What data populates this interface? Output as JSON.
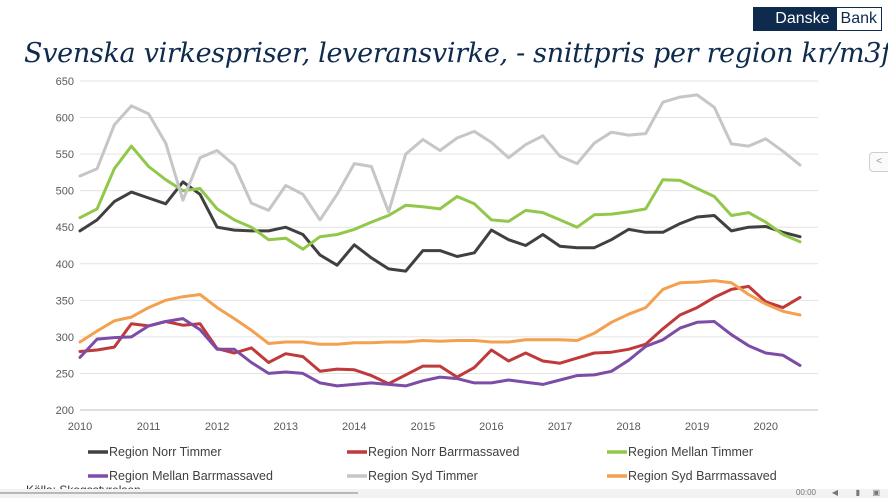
{
  "logo": {
    "part1": "Danske",
    "part2": "Bank"
  },
  "title": "Svenska virkespriser, leveransvirke, - snittpris per region kr/m3fub",
  "source": "Källa: Skogsstyrelsen",
  "player": {
    "time": "00:00"
  },
  "icons": {
    "share": "share-icon",
    "volume": "volume-icon",
    "fullscreen": "fullscreen-icon"
  },
  "chart_data": {
    "type": "line",
    "title": "",
    "xlabel": "",
    "ylabel": "",
    "xlim": [
      2010,
      2020.5
    ],
    "ylim": [
      200,
      650
    ],
    "y_ticks": [
      200,
      250,
      300,
      350,
      400,
      450,
      500,
      550,
      600,
      650
    ],
    "x_ticks": [
      2010,
      2011,
      2012,
      2013,
      2014,
      2015,
      2016,
      2017,
      2018,
      2019,
      2020
    ],
    "grid": "horizontal",
    "legend": "bottom",
    "x": [
      2010.0,
      2010.25,
      2010.5,
      2010.75,
      2011.0,
      2011.25,
      2011.5,
      2011.75,
      2012.0,
      2012.25,
      2012.5,
      2012.75,
      2013.0,
      2013.25,
      2013.5,
      2013.75,
      2014.0,
      2014.25,
      2014.5,
      2014.75,
      2015.0,
      2015.25,
      2015.5,
      2015.75,
      2016.0,
      2016.25,
      2016.5,
      2016.75,
      2017.0,
      2017.25,
      2017.5,
      2017.75,
      2018.0,
      2018.25,
      2018.5,
      2018.75,
      2019.0,
      2019.25,
      2019.5,
      2019.75,
      2020.0,
      2020.25,
      2020.5
    ],
    "series": [
      {
        "name": "Region Norr Timmer",
        "color": "#404040",
        "values": [
          445,
          460,
          485,
          498,
          490,
          482,
          512,
          495,
          450,
          446,
          445,
          445,
          450,
          440,
          412,
          398,
          426,
          408,
          393,
          390,
          418,
          418,
          410,
          415,
          446,
          433,
          425,
          440,
          424,
          422,
          422,
          433,
          447,
          443,
          443,
          455,
          464,
          466,
          445,
          450,
          451,
          443,
          437
        ]
      },
      {
        "name": "Region Norr Barrmassaved",
        "color": "#c0393b",
        "values": [
          280,
          282,
          286,
          318,
          315,
          321,
          316,
          318,
          284,
          278,
          285,
          265,
          277,
          273,
          253,
          256,
          255,
          247,
          236,
          248,
          260,
          260,
          245,
          258,
          282,
          267,
          278,
          267,
          264,
          271,
          278,
          279,
          283,
          290,
          311,
          330,
          340,
          354,
          365,
          369,
          348,
          340,
          354
        ]
      },
      {
        "name": "Region Mellan Timmer",
        "color": "#92c84a",
        "values": [
          463,
          475,
          530,
          561,
          533,
          515,
          500,
          503,
          475,
          460,
          450,
          433,
          435,
          420,
          437,
          440,
          447,
          457,
          466,
          480,
          478,
          475,
          492,
          482,
          460,
          458,
          473,
          470,
          460,
          450,
          467,
          468,
          471,
          475,
          515,
          514,
          503,
          492,
          466,
          470,
          457,
          440,
          430
        ]
      },
      {
        "name": "Region Mellan Barrmassaved",
        "color": "#7d4ca6",
        "values": [
          272,
          297,
          299,
          300,
          315,
          321,
          325,
          310,
          283,
          283,
          265,
          250,
          252,
          250,
          237,
          233,
          235,
          237,
          235,
          233,
          240,
          245,
          243,
          237,
          237,
          241,
          238,
          235,
          241,
          247,
          248,
          253,
          268,
          287,
          296,
          312,
          320,
          321,
          303,
          288,
          278,
          275,
          261
        ]
      },
      {
        "name": "Region Syd Timmer",
        "color": "#c6c6c6",
        "values": [
          520,
          530,
          590,
          616,
          605,
          565,
          487,
          545,
          555,
          535,
          483,
          473,
          507,
          495,
          460,
          495,
          537,
          533,
          471,
          550,
          570,
          555,
          572,
          581,
          566,
          545,
          563,
          575,
          547,
          537,
          565,
          580,
          576,
          578,
          621,
          628,
          631,
          614,
          564,
          561,
          571,
          554,
          535
        ]
      },
      {
        "name": "Region Syd Barrmassaved",
        "color": "#f4a04e",
        "values": [
          293,
          308,
          322,
          327,
          340,
          350,
          355,
          358,
          340,
          325,
          309,
          291,
          293,
          293,
          290,
          290,
          292,
          292,
          293,
          293,
          295,
          294,
          295,
          295,
          293,
          293,
          296,
          296,
          296,
          295,
          305,
          320,
          331,
          340,
          365,
          374,
          375,
          377,
          374,
          358,
          345,
          335,
          330
        ]
      }
    ]
  }
}
